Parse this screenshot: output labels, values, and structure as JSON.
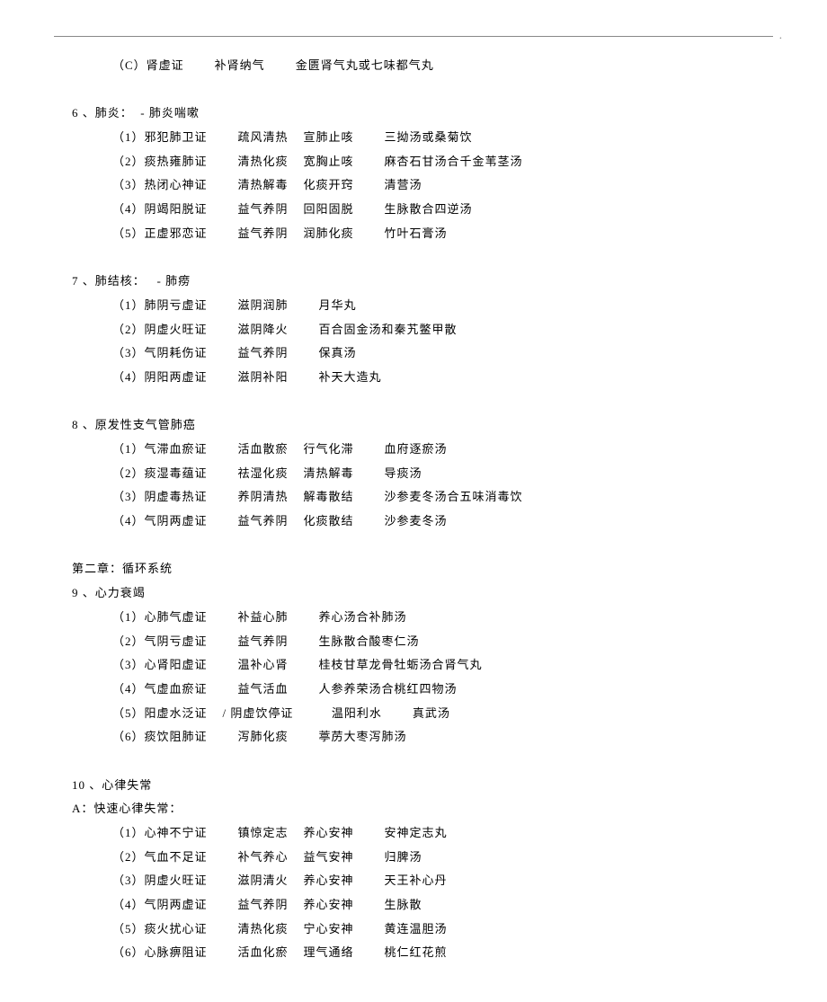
{
  "lines": [
    {
      "indent": 1,
      "cells": [
        "（C）肾虚证",
        "        补肾纳气",
        "        金匮肾气丸或七味都气丸"
      ]
    },
    {
      "indent": 0,
      "cells": [
        " "
      ]
    },
    {
      "indent": 2,
      "cells": [
        "6 、肺炎：  - 肺炎喘嗽"
      ]
    },
    {
      "indent": 1,
      "cells": [
        "（1）邪犯肺卫证",
        "        疏风清热",
        "    宣肺止咳",
        "        三拗汤或桑菊饮"
      ]
    },
    {
      "indent": 1,
      "cells": [
        "（2）痰热雍肺证",
        "        清热化痰",
        "    宽胸止咳",
        "        麻杏石甘汤合千金苇茎汤"
      ]
    },
    {
      "indent": 1,
      "cells": [
        "（3）热闭心神证",
        "        清热解毒",
        "    化痰开窍",
        "        清营汤"
      ]
    },
    {
      "indent": 1,
      "cells": [
        "（4）阴竭阳脱证",
        "        益气养阴",
        "    回阳固脱",
        "        生脉散合四逆汤"
      ]
    },
    {
      "indent": 1,
      "cells": [
        "（5）正虚邪恋证",
        "        益气养阴",
        "    润肺化痰",
        "        竹叶石膏汤"
      ]
    },
    {
      "indent": 0,
      "cells": [
        " "
      ]
    },
    {
      "indent": 2,
      "cells": [
        "7 、肺结核：   - 肺痨"
      ]
    },
    {
      "indent": 1,
      "cells": [
        "（1）肺阴亏虚证",
        "        滋阴润肺",
        "        月华丸"
      ]
    },
    {
      "indent": 1,
      "cells": [
        "（2）阴虚火旺证",
        "        滋阴降火",
        "        百合固金汤和秦艽鳖甲散"
      ]
    },
    {
      "indent": 1,
      "cells": [
        "（3）气阴耗伤证",
        "        益气养阴",
        "        保真汤"
      ]
    },
    {
      "indent": 1,
      "cells": [
        "（4）阴阳两虚证",
        "        滋阴补阳",
        "        补天大造丸"
      ]
    },
    {
      "indent": 0,
      "cells": [
        " "
      ]
    },
    {
      "indent": 2,
      "cells": [
        "8 、原发性支气管肺癌"
      ]
    },
    {
      "indent": 1,
      "cells": [
        "（1）气滞血瘀证",
        "        活血散瘀",
        "    行气化滞",
        "        血府逐瘀汤"
      ]
    },
    {
      "indent": 1,
      "cells": [
        "（2）痰湿毒蕴证",
        "        祛湿化痰",
        "    清热解毒",
        "        导痰汤"
      ]
    },
    {
      "indent": 1,
      "cells": [
        "（3）阴虚毒热证",
        "        养阴清热",
        "    解毒散结",
        "        沙参麦冬汤合五味消毒饮"
      ]
    },
    {
      "indent": 1,
      "cells": [
        "（4）气阴两虚证",
        "        益气养阴",
        "    化痰散结",
        "        沙参麦冬汤"
      ]
    },
    {
      "indent": 0,
      "cells": [
        " "
      ]
    },
    {
      "indent": 2,
      "cells": [
        "第二章：循环系统"
      ]
    },
    {
      "indent": 2,
      "cells": [
        "9 、心力衰竭"
      ]
    },
    {
      "indent": 1,
      "cells": [
        "（1）心肺气虚证",
        "        补益心肺",
        "        养心汤合补肺汤"
      ]
    },
    {
      "indent": 1,
      "cells": [
        "（2）气阴亏虚证",
        "        益气养阴",
        "        生脉散合酸枣仁汤"
      ]
    },
    {
      "indent": 1,
      "cells": [
        "（3）心肾阳虚证",
        "        温补心肾",
        "        桂枝甘草龙骨牡蛎汤合肾气丸"
      ]
    },
    {
      "indent": 1,
      "cells": [
        "（4）气虚血瘀证",
        "        益气活血",
        "        人参养荣汤合桃红四物汤"
      ]
    },
    {
      "indent": 1,
      "cells": [
        "（5）阳虚水泛证",
        "    / 阴虚饮停证",
        "          温阳利水",
        "        真武汤"
      ]
    },
    {
      "indent": 1,
      "cells": [
        "（6）痰饮阻肺证",
        "        泻肺化痰",
        "        葶苈大枣泻肺汤"
      ]
    },
    {
      "indent": 0,
      "cells": [
        " "
      ]
    },
    {
      "indent": 2,
      "cells": [
        "10 、心律失常"
      ]
    },
    {
      "indent": 2,
      "cells": [
        "A：快速心律失常："
      ]
    },
    {
      "indent": 1,
      "cells": [
        "（1）心神不宁证",
        "        镇惊定志",
        "    养心安神",
        "        安神定志丸"
      ]
    },
    {
      "indent": 1,
      "cells": [
        "（2）气血不足证",
        "        补气养心",
        "    益气安神",
        "        归脾汤"
      ]
    },
    {
      "indent": 1,
      "cells": [
        "（3）阴虚火旺证",
        "        滋阴清火",
        "    养心安神",
        "        天王补心丹"
      ]
    },
    {
      "indent": 1,
      "cells": [
        "（4）气阴两虚证",
        "        益气养阴",
        "    养心安神",
        "        生脉散"
      ]
    },
    {
      "indent": 1,
      "cells": [
        "（5）痰火扰心证",
        "        清热化痰",
        "    宁心安神",
        "        黄连温胆汤"
      ]
    },
    {
      "indent": 1,
      "cells": [
        "（6）心脉痹阻证",
        "        活血化瘀",
        "    理气通络",
        "        桃仁红花煎"
      ]
    }
  ]
}
